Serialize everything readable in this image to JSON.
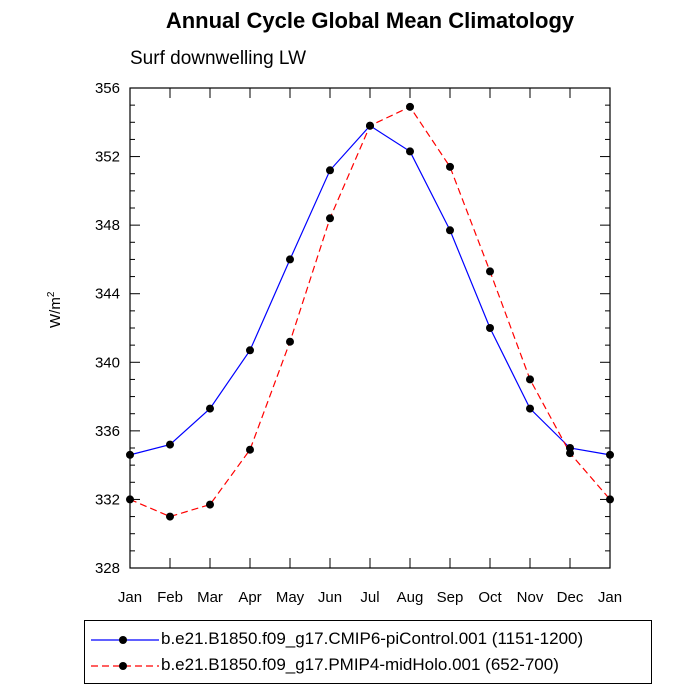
{
  "chart_data": {
    "type": "line",
    "title": "Annual Cycle Global Mean Climatology",
    "subtitle": "Surf downwelling LW",
    "xlabel": "",
    "ylabel": "W/m",
    "ylabel_superscript": "2",
    "categories": [
      "Jan",
      "Feb",
      "Mar",
      "Apr",
      "May",
      "Jun",
      "Jul",
      "Aug",
      "Sep",
      "Oct",
      "Nov",
      "Dec",
      "Jan"
    ],
    "ylim": [
      328,
      356
    ],
    "yticks": [
      328,
      332,
      336,
      340,
      344,
      348,
      352,
      356
    ],
    "ytick_labels": [
      "328",
      "332",
      "336",
      "340",
      "344",
      "348",
      "352",
      "356"
    ],
    "series": [
      {
        "name": "b.e21.B1850.f09_g17.CMIP6-piControl.001 (1151-1200)",
        "color": "#0000ff",
        "dash": "solid",
        "values": [
          334.6,
          335.2,
          337.3,
          340.7,
          346.0,
          351.2,
          353.8,
          352.3,
          347.7,
          342.0,
          337.3,
          335.0,
          334.6
        ]
      },
      {
        "name": "b.e21.B1850.f09_g17.PMIP4-midHolo.001 (652-700)",
        "color": "#ff0000",
        "dash": "dashed",
        "values": [
          332.0,
          331.0,
          331.7,
          334.9,
          341.2,
          348.4,
          353.8,
          354.9,
          351.4,
          345.3,
          339.0,
          334.7,
          332.0
        ]
      }
    ],
    "legend_position": "bottom"
  }
}
